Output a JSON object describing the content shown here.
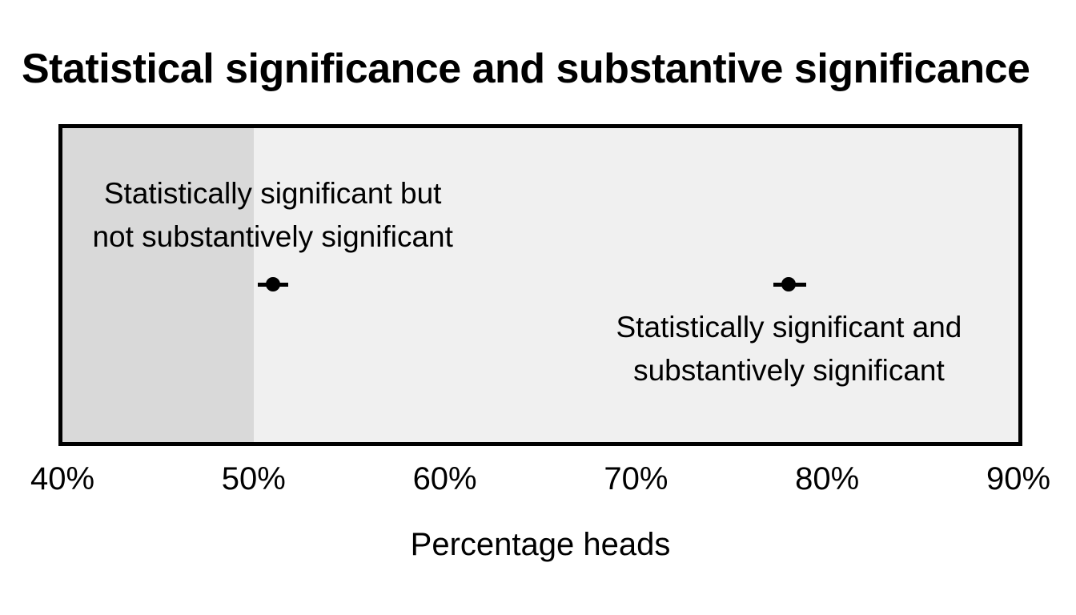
{
  "title": "Statistical significance and substantive significance",
  "chart_data": {
    "type": "scatter",
    "title": "Statistical significance and substantive significance",
    "xlabel": "Percentage heads",
    "xlim": [
      40,
      90
    ],
    "x_tick_values": [
      40,
      50,
      60,
      70,
      80,
      90
    ],
    "x_tick_labels": [
      "40%",
      "50%",
      "60%",
      "70%",
      "80%",
      "90%"
    ],
    "grid": "off",
    "legend": "none",
    "shaded_band": {
      "x_from": 40,
      "x_to": 50
    },
    "points": [
      {
        "x": 51,
        "ci_low": 50.2,
        "ci_high": 51.8,
        "label_lines": [
          "Statistically significant but",
          "not substantively significant"
        ],
        "label_position": "above"
      },
      {
        "x": 78,
        "ci_low": 77.2,
        "ci_high": 78.9,
        "label_lines": [
          "Statistically significant and",
          "substantively significant"
        ],
        "label_position": "below"
      }
    ],
    "colors": {
      "panel_background": "#f0f0f0",
      "shaded_band": "#d9d9d9",
      "panel_border": "#000000",
      "point": "#000000",
      "text": "#000000"
    }
  }
}
